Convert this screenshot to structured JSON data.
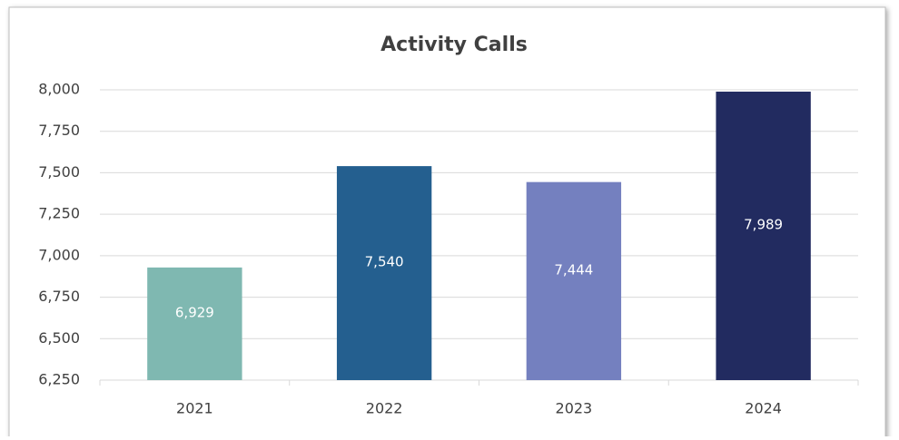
{
  "chart_data": {
    "type": "bar",
    "title": "Activity Calls",
    "categories": [
      "2021",
      "2022",
      "2023",
      "2024"
    ],
    "values": [
      6929,
      7540,
      7444,
      7989
    ],
    "value_labels": [
      "6,929",
      "7,540",
      "7,444",
      "7,989"
    ],
    "colors": [
      "#7fb8b1",
      "#245f8f",
      "#7480bf",
      "#222b60"
    ],
    "ylim": [
      6250,
      8000
    ],
    "yticks": [
      {
        "value": 6250,
        "label": "6,250"
      },
      {
        "value": 6500,
        "label": "6,500"
      },
      {
        "value": 6750,
        "label": "6,750"
      },
      {
        "value": 7000,
        "label": "7,000"
      },
      {
        "value": 7250,
        "label": "7,250"
      },
      {
        "value": 7500,
        "label": "7,500"
      },
      {
        "value": 7750,
        "label": "7,750"
      },
      {
        "value": 8000,
        "label": "8,000"
      }
    ],
    "grid": true
  }
}
